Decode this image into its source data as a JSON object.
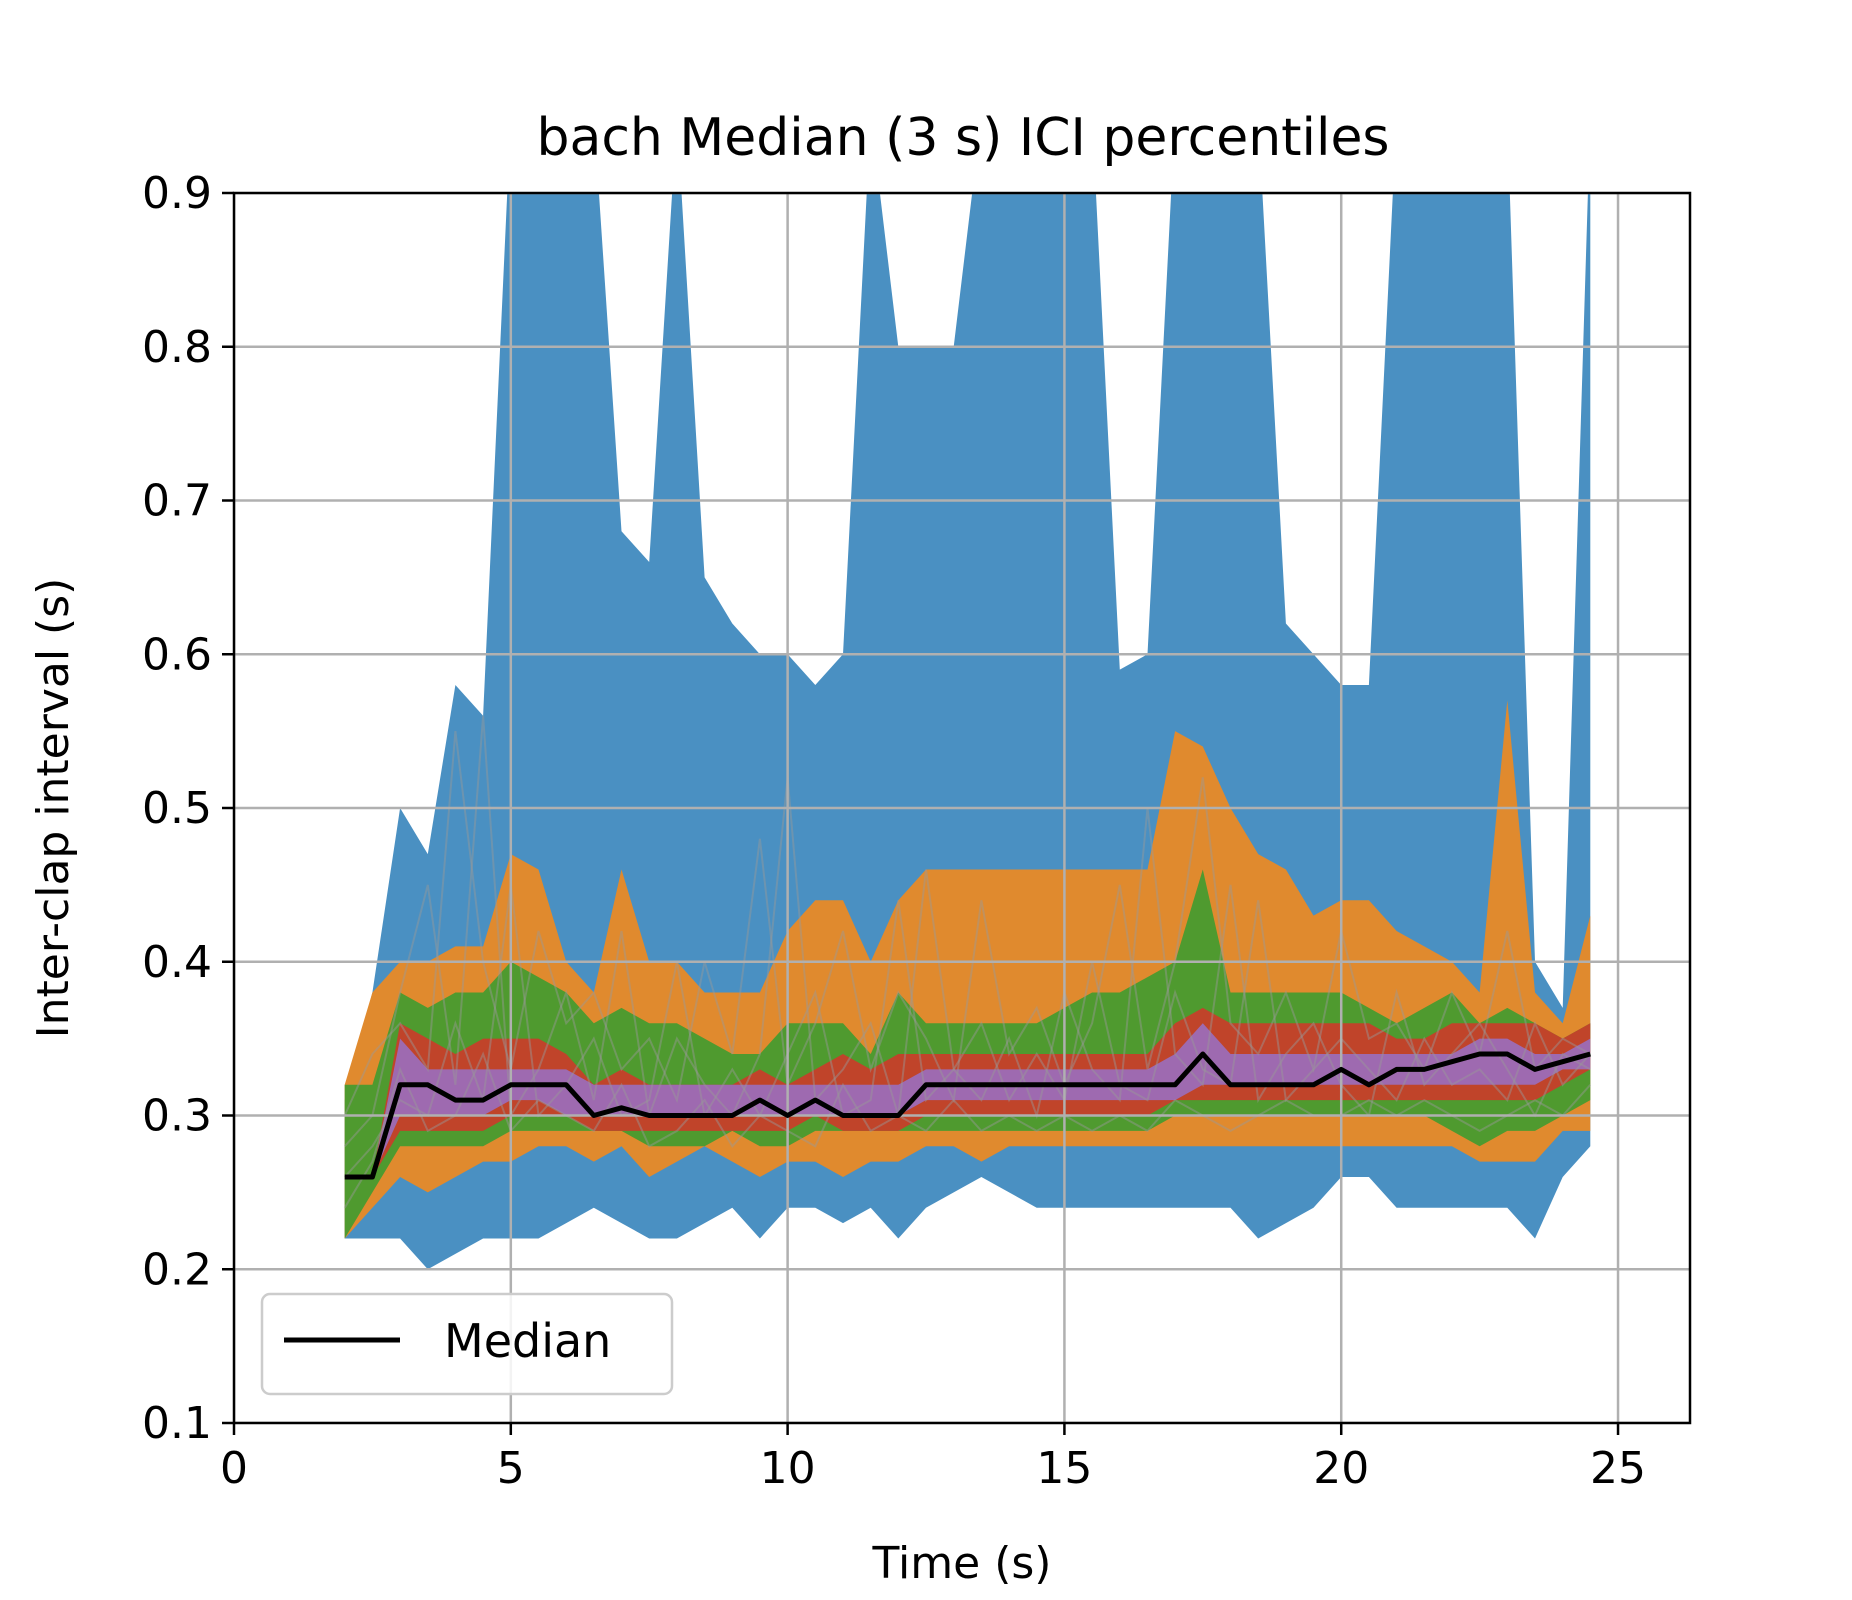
{
  "chart_data": {
    "type": "area",
    "title": "bach Median (3 s) ICI percentiles",
    "xlabel": "Time (s)",
    "ylabel": "Inter-clap interval (s)",
    "xlim": [
      0,
      26.3
    ],
    "ylim": [
      0.1,
      0.9
    ],
    "xticks": [
      "0",
      "5",
      "10",
      "15",
      "20",
      "25"
    ],
    "yticks": [
      "0.1",
      "0.2",
      "0.3",
      "0.4",
      "0.5",
      "0.6",
      "0.7",
      "0.8",
      "0.9"
    ],
    "grid": true,
    "legend": {
      "position": "lower-left",
      "entries": [
        "Median"
      ]
    },
    "colors": {
      "band_outer": "#4a90c2",
      "band_2": "#e08a2e",
      "band_3": "#4f9a2f",
      "band_4": "#c0442a",
      "band_inner": "#9e6ab0",
      "median": "#000000",
      "traces": "#9a9a9a",
      "grid": "#b0b0b0"
    },
    "x": [
      2,
      2.5,
      3,
      3.5,
      4,
      4.5,
      5,
      5.5,
      6,
      6.5,
      7,
      7.5,
      8,
      8.5,
      9,
      9.5,
      10,
      10.5,
      11,
      11.5,
      12,
      12.5,
      13,
      13.5,
      14,
      14.5,
      15,
      15.5,
      16,
      16.5,
      17,
      17.5,
      18,
      18.5,
      19,
      19.5,
      20,
      20.5,
      21,
      21.5,
      22,
      22.5,
      23,
      23.5,
      24,
      24.5
    ],
    "median": [
      0.26,
      0.26,
      0.32,
      0.32,
      0.31,
      0.31,
      0.32,
      0.32,
      0.32,
      0.3,
      0.305,
      0.3,
      0.3,
      0.3,
      0.3,
      0.31,
      0.3,
      0.31,
      0.3,
      0.3,
      0.3,
      0.32,
      0.32,
      0.32,
      0.32,
      0.32,
      0.32,
      0.32,
      0.32,
      0.32,
      0.32,
      0.34,
      0.32,
      0.32,
      0.32,
      0.32,
      0.33,
      0.32,
      0.33,
      0.33,
      0.335,
      0.34,
      0.34,
      0.33,
      0.335,
      0.34
    ],
    "bands": [
      {
        "name": "band_outer",
        "upper": [
          0.31,
          0.38,
          0.5,
          0.47,
          0.58,
          0.56,
          0.95,
          0.95,
          0.95,
          0.95,
          0.68,
          0.66,
          0.95,
          0.65,
          0.62,
          0.6,
          0.6,
          0.58,
          0.6,
          0.95,
          0.8,
          0.8,
          0.8,
          0.95,
          0.95,
          0.95,
          0.95,
          0.95,
          0.59,
          0.6,
          0.95,
          0.95,
          0.95,
          0.95,
          0.62,
          0.6,
          0.58,
          0.58,
          0.95,
          0.95,
          0.95,
          0.95,
          0.95,
          0.4,
          0.37,
          0.95
        ],
        "lower": [
          0.22,
          0.22,
          0.22,
          0.2,
          0.21,
          0.22,
          0.22,
          0.22,
          0.23,
          0.24,
          0.23,
          0.22,
          0.22,
          0.23,
          0.24,
          0.22,
          0.24,
          0.24,
          0.23,
          0.24,
          0.22,
          0.24,
          0.25,
          0.26,
          0.25,
          0.24,
          0.24,
          0.24,
          0.24,
          0.24,
          0.24,
          0.24,
          0.24,
          0.22,
          0.23,
          0.24,
          0.26,
          0.26,
          0.24,
          0.24,
          0.24,
          0.24,
          0.24,
          0.22,
          0.26,
          0.28
        ]
      },
      {
        "name": "band_2",
        "upper": [
          0.32,
          0.38,
          0.4,
          0.4,
          0.41,
          0.41,
          0.47,
          0.46,
          0.4,
          0.38,
          0.46,
          0.4,
          0.4,
          0.38,
          0.38,
          0.38,
          0.42,
          0.44,
          0.44,
          0.4,
          0.44,
          0.46,
          0.46,
          0.46,
          0.46,
          0.46,
          0.46,
          0.46,
          0.46,
          0.46,
          0.55,
          0.54,
          0.5,
          0.47,
          0.46,
          0.43,
          0.44,
          0.44,
          0.42,
          0.41,
          0.4,
          0.38,
          0.57,
          0.38,
          0.36,
          0.43
        ],
        "lower": [
          0.22,
          0.24,
          0.26,
          0.25,
          0.26,
          0.27,
          0.27,
          0.28,
          0.28,
          0.27,
          0.28,
          0.26,
          0.27,
          0.28,
          0.27,
          0.26,
          0.27,
          0.27,
          0.26,
          0.27,
          0.27,
          0.28,
          0.28,
          0.27,
          0.28,
          0.28,
          0.28,
          0.28,
          0.28,
          0.28,
          0.28,
          0.28,
          0.28,
          0.28,
          0.28,
          0.28,
          0.28,
          0.28,
          0.28,
          0.28,
          0.28,
          0.27,
          0.27,
          0.27,
          0.29,
          0.29
        ]
      },
      {
        "name": "band_3",
        "upper": [
          0.32,
          0.32,
          0.38,
          0.37,
          0.38,
          0.38,
          0.4,
          0.39,
          0.38,
          0.36,
          0.37,
          0.36,
          0.36,
          0.35,
          0.34,
          0.34,
          0.36,
          0.36,
          0.36,
          0.34,
          0.38,
          0.36,
          0.36,
          0.36,
          0.36,
          0.36,
          0.37,
          0.38,
          0.38,
          0.39,
          0.4,
          0.46,
          0.38,
          0.38,
          0.38,
          0.38,
          0.38,
          0.37,
          0.36,
          0.37,
          0.38,
          0.36,
          0.37,
          0.36,
          0.35,
          0.36
        ],
        "lower": [
          0.22,
          0.25,
          0.28,
          0.28,
          0.28,
          0.28,
          0.29,
          0.29,
          0.29,
          0.29,
          0.29,
          0.28,
          0.28,
          0.28,
          0.29,
          0.28,
          0.28,
          0.29,
          0.29,
          0.29,
          0.29,
          0.29,
          0.29,
          0.29,
          0.29,
          0.29,
          0.29,
          0.29,
          0.29,
          0.29,
          0.3,
          0.3,
          0.3,
          0.3,
          0.3,
          0.3,
          0.3,
          0.3,
          0.3,
          0.3,
          0.29,
          0.28,
          0.29,
          0.29,
          0.3,
          0.31
        ]
      },
      {
        "name": "band_4",
        "upper": [
          0.26,
          0.26,
          0.36,
          0.35,
          0.34,
          0.35,
          0.35,
          0.35,
          0.34,
          0.32,
          0.33,
          0.32,
          0.32,
          0.32,
          0.32,
          0.33,
          0.32,
          0.33,
          0.34,
          0.33,
          0.34,
          0.34,
          0.34,
          0.34,
          0.34,
          0.34,
          0.34,
          0.34,
          0.34,
          0.34,
          0.36,
          0.37,
          0.36,
          0.36,
          0.36,
          0.36,
          0.36,
          0.36,
          0.35,
          0.35,
          0.36,
          0.36,
          0.36,
          0.36,
          0.35,
          0.36
        ],
        "lower": [
          0.26,
          0.26,
          0.29,
          0.29,
          0.29,
          0.29,
          0.3,
          0.3,
          0.3,
          0.29,
          0.29,
          0.29,
          0.29,
          0.29,
          0.29,
          0.29,
          0.29,
          0.3,
          0.29,
          0.29,
          0.29,
          0.3,
          0.3,
          0.3,
          0.3,
          0.3,
          0.3,
          0.3,
          0.3,
          0.3,
          0.31,
          0.31,
          0.31,
          0.31,
          0.31,
          0.31,
          0.31,
          0.31,
          0.31,
          0.31,
          0.31,
          0.31,
          0.31,
          0.31,
          0.32,
          0.33
        ]
      },
      {
        "name": "band_inner",
        "upper": [
          0.26,
          0.26,
          0.35,
          0.33,
          0.33,
          0.33,
          0.33,
          0.33,
          0.33,
          0.32,
          0.32,
          0.32,
          0.32,
          0.32,
          0.32,
          0.32,
          0.32,
          0.32,
          0.32,
          0.32,
          0.32,
          0.33,
          0.33,
          0.33,
          0.33,
          0.33,
          0.33,
          0.33,
          0.33,
          0.33,
          0.34,
          0.36,
          0.34,
          0.34,
          0.34,
          0.34,
          0.34,
          0.34,
          0.34,
          0.34,
          0.34,
          0.35,
          0.35,
          0.34,
          0.34,
          0.35
        ],
        "lower": [
          0.26,
          0.26,
          0.3,
          0.3,
          0.3,
          0.3,
          0.31,
          0.31,
          0.3,
          0.3,
          0.3,
          0.3,
          0.3,
          0.3,
          0.3,
          0.3,
          0.3,
          0.3,
          0.3,
          0.3,
          0.3,
          0.31,
          0.31,
          0.31,
          0.31,
          0.31,
          0.31,
          0.31,
          0.31,
          0.31,
          0.31,
          0.32,
          0.32,
          0.32,
          0.32,
          0.32,
          0.32,
          0.32,
          0.32,
          0.32,
          0.32,
          0.32,
          0.32,
          0.32,
          0.33,
          0.33
        ]
      }
    ],
    "traces": [
      [
        0.3,
        0.34,
        0.36,
        0.33,
        0.55,
        0.4,
        0.33,
        0.42,
        0.36,
        0.38,
        0.33,
        0.35,
        0.31,
        0.4,
        0.34,
        0.48,
        0.32,
        0.36,
        0.42,
        0.33,
        0.38,
        0.35,
        0.31,
        0.44,
        0.34,
        0.37,
        0.32,
        0.36,
        0.45,
        0.33,
        0.4,
        0.52,
        0.36,
        0.34,
        0.38,
        0.33,
        0.42,
        0.35,
        0.36,
        0.33,
        0.38,
        0.34,
        0.42,
        0.33,
        0.35,
        0.34
      ],
      [
        0.28,
        0.3,
        0.38,
        0.45,
        0.32,
        0.56,
        0.3,
        0.33,
        0.38,
        0.31,
        0.42,
        0.3,
        0.35,
        0.32,
        0.3,
        0.34,
        0.52,
        0.31,
        0.33,
        0.36,
        0.3,
        0.46,
        0.33,
        0.31,
        0.35,
        0.3,
        0.38,
        0.33,
        0.31,
        0.5,
        0.34,
        0.32,
        0.45,
        0.31,
        0.34,
        0.36,
        0.32,
        0.3,
        0.38,
        0.32,
        0.34,
        0.36,
        0.33,
        0.3,
        0.34,
        0.33
      ],
      [
        0.26,
        0.28,
        0.31,
        0.3,
        0.36,
        0.31,
        0.45,
        0.3,
        0.32,
        0.35,
        0.3,
        0.31,
        0.4,
        0.3,
        0.33,
        0.3,
        0.34,
        0.38,
        0.3,
        0.31,
        0.44,
        0.31,
        0.33,
        0.36,
        0.31,
        0.34,
        0.31,
        0.4,
        0.32,
        0.31,
        0.38,
        0.33,
        0.32,
        0.44,
        0.31,
        0.33,
        0.35,
        0.33,
        0.31,
        0.35,
        0.32,
        0.33,
        0.31,
        0.36,
        0.32,
        0.34
      ],
      [
        0.24,
        0.27,
        0.33,
        0.29,
        0.3,
        0.34,
        0.29,
        0.31,
        0.3,
        0.29,
        0.32,
        0.28,
        0.29,
        0.31,
        0.28,
        0.3,
        0.29,
        0.28,
        0.32,
        0.29,
        0.3,
        0.29,
        0.31,
        0.29,
        0.3,
        0.29,
        0.3,
        0.29,
        0.3,
        0.29,
        0.31,
        0.3,
        0.29,
        0.3,
        0.31,
        0.3,
        0.3,
        0.31,
        0.3,
        0.31,
        0.3,
        0.29,
        0.3,
        0.31,
        0.3,
        0.32
      ]
    ]
  }
}
